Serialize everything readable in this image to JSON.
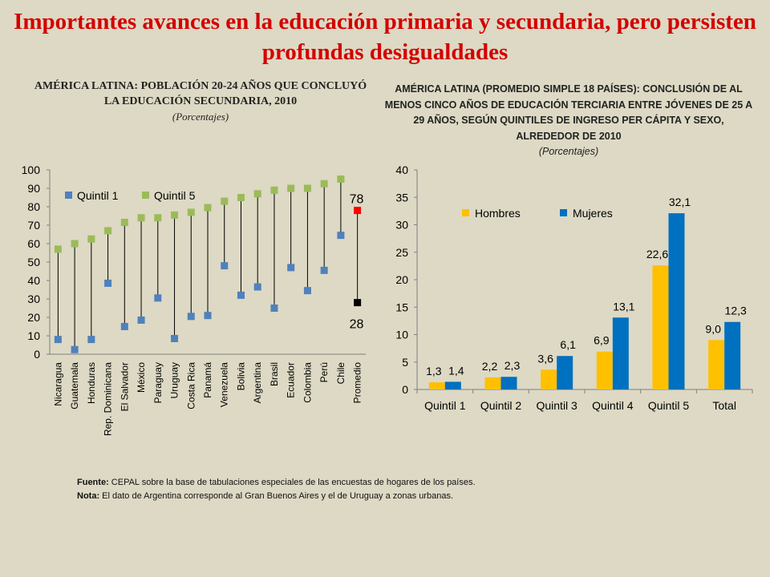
{
  "main_title": "Importantes avances en la educación primaria y secundaria, pero persisten profundas desigualdades",
  "left_chart": {
    "title": "AMÉRICA LATINA: POBLACIÓN 20-24 AÑOS QUE CONCLUYÓ LA EDUCACIÓN SECUNDARIA, 2010",
    "subtitle": "(Porcentajes)"
  },
  "right_chart": {
    "title": "AMÉRICA LATINA (PROMEDIO SIMPLE 18 PAÍSES): CONCLUSIÓN DE AL MENOS CINCO AÑOS DE EDUCACIÓN TERCIARIA ENTRE JÓVENES DE 25 A 29 AÑOS, SEGÚN QUINTILES DE INGRESO PER CÁPITA Y SEXO, ALREDEDOR DE 2010",
    "subtitle": "(Porcentajes)"
  },
  "colors": {
    "quintil1": "#4f81bd",
    "quintil5": "#9bbb59",
    "promedio_q5": "#ff0000",
    "promedio_q1": "#000000",
    "hombres": "#ffc000",
    "mujeres": "#0070c0",
    "title_red": "#d40000"
  },
  "chart_data": [
    {
      "type": "scatter",
      "categories": [
        "Nicaragua",
        "Guatemala",
        "Honduras",
        "Rep. Dominicana",
        "El Salvador",
        "México",
        "Paraguay",
        "Uruguay",
        "Costa Rica",
        "Panamá",
        "Venezuela",
        "Bolivia",
        "Argentina",
        "Brasil",
        "Ecuador",
        "Colombia",
        "Perú",
        "Chile",
        "Promedio"
      ],
      "series": [
        {
          "name": "Quintil 1",
          "values": [
            8,
            2.5,
            8,
            38.5,
            15,
            18.5,
            30.5,
            8.5,
            20.5,
            21,
            48,
            32,
            36.5,
            25,
            47,
            34.5,
            45.5,
            64.5,
            28
          ]
        },
        {
          "name": "Quintil 5",
          "values": [
            57,
            60,
            62.5,
            67,
            71.5,
            74,
            74,
            75.5,
            77,
            79.5,
            83,
            85,
            87,
            89,
            90,
            90,
            92.5,
            95,
            78
          ]
        }
      ],
      "annotations": [
        "78",
        "28"
      ],
      "yticks": [
        "0",
        "10",
        "20",
        "30",
        "40",
        "50",
        "60",
        "70",
        "80",
        "90",
        "100"
      ],
      "ylim": [
        0,
        100
      ]
    },
    {
      "type": "bar",
      "categories": [
        "Quintil 1",
        "Quintil 2",
        "Quintil 3",
        "Quintil 4",
        "Quintil 5",
        "Total"
      ],
      "series": [
        {
          "name": "Hombres",
          "values": [
            1.3,
            2.2,
            3.6,
            6.9,
            22.6,
            9.0
          ],
          "labels": [
            "1,3",
            "2,2",
            "3,6",
            "6,9",
            "22,6",
            "9,0"
          ]
        },
        {
          "name": "Mujeres",
          "values": [
            1.4,
            2.3,
            6.1,
            13.1,
            32.1,
            12.3
          ],
          "labels": [
            "1,4",
            "2,3",
            "6,1",
            "13,1",
            "32,1",
            "12,3"
          ]
        }
      ],
      "yticks": [
        "0",
        "5",
        "10",
        "15",
        "20",
        "25",
        "30",
        "35",
        "40"
      ],
      "ylim": [
        0,
        40
      ]
    }
  ],
  "notes": {
    "source_label": "Fuente:",
    "source_text": "CEPAL sobre la base de tabulaciones especiales de las encuestas de hogares de los países.",
    "note_label": "Nota:",
    "note_text": "El dato de Argentina corresponde al Gran Buenos Aires y el de Uruguay a zonas urbanas."
  }
}
